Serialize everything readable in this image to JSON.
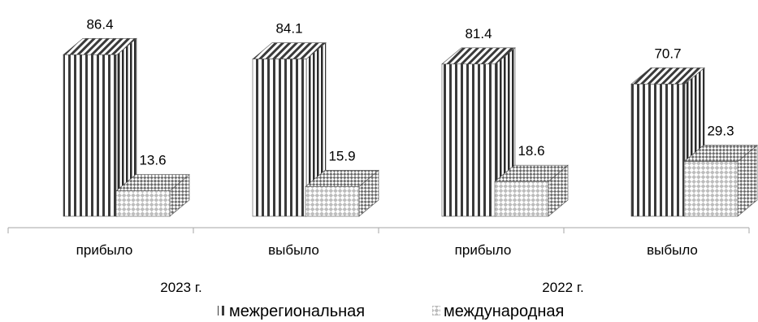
{
  "chart_data": {
    "type": "bar",
    "categories": [
      "прибыло",
      "выбыло",
      "прибыло",
      "выбыло"
    ],
    "groups": [
      "2023 г.",
      "2022 г."
    ],
    "series": [
      {
        "name": "межрегиональная",
        "values": [
          86.4,
          84.1,
          81.4,
          70.7
        ]
      },
      {
        "name": "международная",
        "values": [
          13.6,
          15.9,
          18.6,
          29.3
        ]
      }
    ],
    "ylim": [
      0,
      100
    ],
    "grid": false,
    "legend_position": "bottom"
  },
  "colors": {
    "axis": "#a6a6a6",
    "bar_outline": "#4d4d4d",
    "stripe_dark": "#333333",
    "pattern_light": "#d9d9d9"
  }
}
